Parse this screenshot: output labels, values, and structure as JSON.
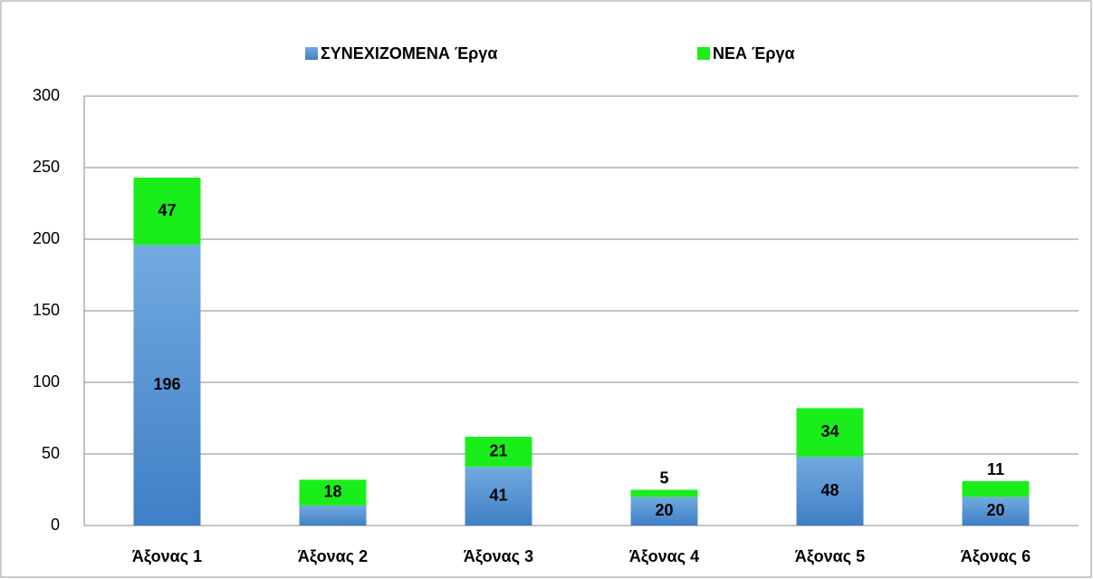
{
  "chart_data": {
    "type": "stacked-bar",
    "categories": [
      "Άξονας 1",
      "Άξονας 2",
      "Άξονας 3",
      "Άξονας 4",
      "Άξονας 5",
      "Άξονας 6"
    ],
    "series": [
      {
        "name": "ΣΥΝΕΧΙΖΟΜΕΝΑ Έργα",
        "color": "#5b9bd5",
        "values": [
          196,
          14,
          41,
          20,
          48,
          20
        ]
      },
      {
        "name": "ΝΕΑ Έργα",
        "color": "#1aee1a",
        "values": [
          47,
          18,
          21,
          5,
          34,
          11
        ]
      }
    ],
    "ylim": [
      0,
      300
    ],
    "yticks": [
      0,
      50,
      100,
      150,
      200,
      250,
      300
    ],
    "grid": true,
    "legend": "top"
  }
}
